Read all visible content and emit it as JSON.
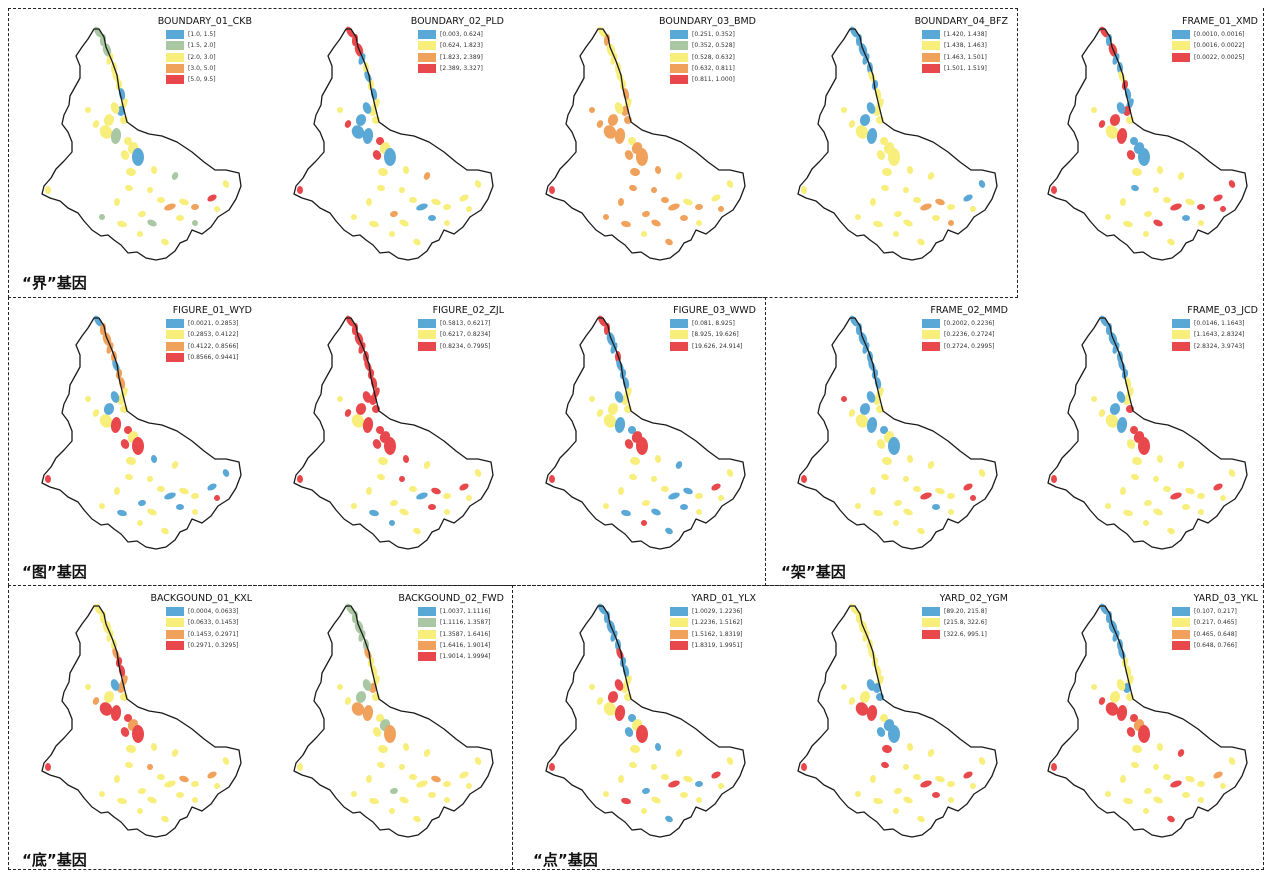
{
  "colors": {
    "blue": "#5aa8d6",
    "green": "#a9c7a2",
    "yellow": "#f7ee7c",
    "orange": "#f0a25c",
    "red": "#e8474b"
  },
  "groups": [
    {
      "label": "“界”基因"
    },
    {
      "label": "“图”基因"
    },
    {
      "label": "“架”基因"
    },
    {
      "label": "“底”基因"
    },
    {
      "label": "“点”基因"
    }
  ],
  "panels": [
    {
      "title": "BOUNDARY_01_CKB",
      "legend": [
        {
          "range": "[1.0, 1.5]",
          "color": "blue"
        },
        {
          "range": "[1.5, 2.0]",
          "color": "green"
        },
        {
          "range": "[2.0, 3.0]",
          "color": "yellow"
        },
        {
          "range": "[3.0, 5.0]",
          "color": "orange"
        },
        {
          "range": "[5.0, 9.5]",
          "color": "red"
        }
      ]
    },
    {
      "title": "BOUNDARY_02_PLD",
      "legend": [
        {
          "range": "[0.003, 0.624]",
          "color": "blue"
        },
        {
          "range": "[0.624, 1.823]",
          "color": "yellow"
        },
        {
          "range": "[1.823, 2.389]",
          "color": "orange"
        },
        {
          "range": "[2.389, 3.327]",
          "color": "red"
        }
      ]
    },
    {
      "title": "BOUNDARY_03_BMD",
      "legend": [
        {
          "range": "[0.251, 0.352]",
          "color": "blue"
        },
        {
          "range": "[0.352, 0.528]",
          "color": "green"
        },
        {
          "range": "[0.528, 0.632]",
          "color": "yellow"
        },
        {
          "range": "[0.632, 0.811]",
          "color": "orange"
        },
        {
          "range": "[0.811, 1.000]",
          "color": "red"
        }
      ]
    },
    {
      "title": "BOUNDARY_04_BFZ",
      "legend": [
        {
          "range": "[1.420, 1.438]",
          "color": "blue"
        },
        {
          "range": "[1.438, 1.463]",
          "color": "yellow"
        },
        {
          "range": "[1.463, 1.501]",
          "color": "orange"
        },
        {
          "range": "[1.501, 1.519]",
          "color": "red"
        }
      ]
    },
    {
      "title": "FRAME_01_XMD",
      "legend": [
        {
          "range": "[0.0010, 0.0016]",
          "color": "blue"
        },
        {
          "range": "[0.0016, 0.0022]",
          "color": "yellow"
        },
        {
          "range": "[0.0022, 0.0025]",
          "color": "red"
        }
      ]
    },
    {
      "title": "FIGURE_01_WYD",
      "legend": [
        {
          "range": "[0.0021, 0.2853]",
          "color": "blue"
        },
        {
          "range": "[0.2853, 0.4122]",
          "color": "yellow"
        },
        {
          "range": "[0.4122, 0.8566]",
          "color": "orange"
        },
        {
          "range": "[0.8566, 0.9441]",
          "color": "red"
        }
      ]
    },
    {
      "title": "FIGURE_02_ZJL",
      "legend": [
        {
          "range": "[0.5813, 0.6217]",
          "color": "blue"
        },
        {
          "range": "[0.6217, 0.8234]",
          "color": "yellow"
        },
        {
          "range": "[0.8234, 0.7995]",
          "color": "red"
        }
      ]
    },
    {
      "title": "FIGURE_03_WWD",
      "legend": [
        {
          "range": "[0.081, 8.925]",
          "color": "blue"
        },
        {
          "range": "[8.925, 19.626]",
          "color": "yellow"
        },
        {
          "range": "[19.626, 24.914]",
          "color": "red"
        }
      ]
    },
    {
      "title": "FRAME_02_MMD",
      "legend": [
        {
          "range": "[0.2002, 0.2236]",
          "color": "blue"
        },
        {
          "range": "[0.2236, 0.2724]",
          "color": "yellow"
        },
        {
          "range": "[0.2724, 0.2995]",
          "color": "red"
        }
      ]
    },
    {
      "title": "FRAME_03_JCD",
      "legend": [
        {
          "range": "[0.0146, 1.1643]",
          "color": "blue"
        },
        {
          "range": "[1.1643, 2.8324]",
          "color": "yellow"
        },
        {
          "range": "[2.8324, 3.9743]",
          "color": "red"
        }
      ]
    },
    {
      "title": "BACKGOUND_01_KXL",
      "legend": [
        {
          "range": "[0.0004, 0.0633]",
          "color": "blue"
        },
        {
          "range": "[0.0633, 0.1453]",
          "color": "yellow"
        },
        {
          "range": "[0.1453, 0.2971]",
          "color": "orange"
        },
        {
          "range": "[0.2971, 0.3295]",
          "color": "red"
        }
      ]
    },
    {
      "title": "BACKGOUND_02_FWD",
      "legend": [
        {
          "range": "[1.0037, 1.1116]",
          "color": "blue"
        },
        {
          "range": "[1.1116, 1.3587]",
          "color": "green"
        },
        {
          "range": "[1.3587, 1.6416]",
          "color": "yellow"
        },
        {
          "range": "[1.6416, 1.9014]",
          "color": "orange"
        },
        {
          "range": "[1.9014, 1.9994]",
          "color": "red"
        }
      ]
    },
    {
      "title": "YARD_01_YLX",
      "legend": [
        {
          "range": "[1.0029, 1.2236]",
          "color": "blue"
        },
        {
          "range": "[1.2236, 1.5162]",
          "color": "yellow"
        },
        {
          "range": "[1.5162, 1.8319]",
          "color": "orange"
        },
        {
          "range": "[1.8319, 1.9951]",
          "color": "red"
        }
      ]
    },
    {
      "title": "YARD_02_YGM",
      "legend": [
        {
          "range": "[89.20, 215.8]",
          "color": "blue"
        },
        {
          "range": "[215.8, 322.6]",
          "color": "yellow"
        },
        {
          "range": "[322.6, 995.1]",
          "color": "red"
        }
      ]
    },
    {
      "title": "YARD_03_YKL",
      "legend": [
        {
          "range": "[0.107, 0.217]",
          "color": "blue"
        },
        {
          "range": "[0.217, 0.465]",
          "color": "yellow"
        },
        {
          "range": "[0.465, 0.648]",
          "color": "orange"
        },
        {
          "range": "[0.648, 0.766]",
          "color": "red"
        }
      ]
    }
  ]
}
